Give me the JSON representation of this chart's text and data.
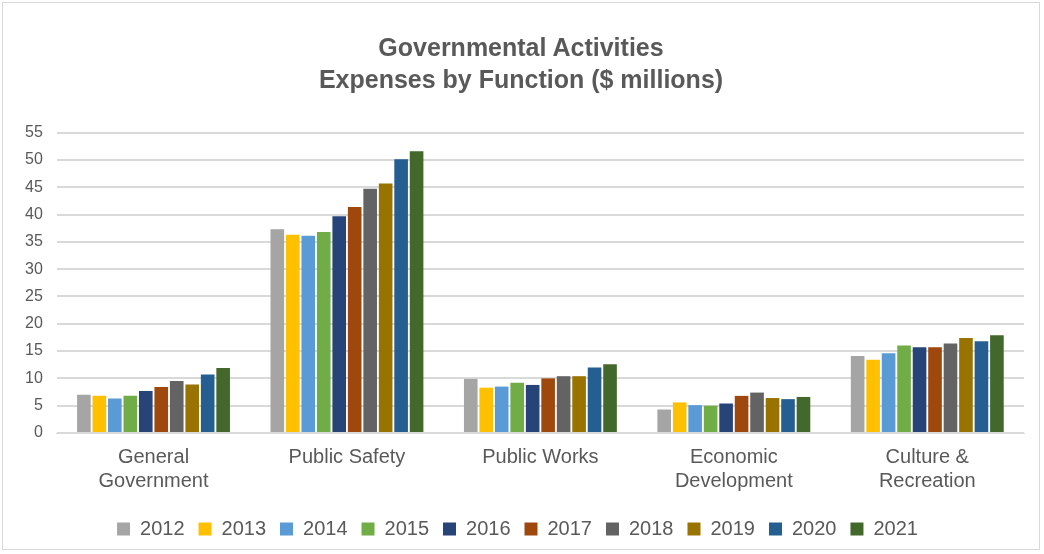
{
  "chart_data": {
    "type": "bar",
    "title": "Governmental Activities",
    "subtitle": "Expenses by Function ($ millions)",
    "categories": [
      "General Government",
      "Public Safety",
      "Public Works",
      "Economic Development",
      "Culture & Recreation"
    ],
    "series": [
      {
        "name": "2012",
        "color": "#a5a5a5",
        "values": [
          7.0,
          37.3,
          9.9,
          4.3,
          14.1
        ]
      },
      {
        "name": "2013",
        "color": "#ffc000",
        "values": [
          6.8,
          36.3,
          8.3,
          5.6,
          13.4
        ]
      },
      {
        "name": "2014",
        "color": "#5b9bd5",
        "values": [
          6.3,
          36.1,
          8.5,
          5.1,
          14.6
        ]
      },
      {
        "name": "2015",
        "color": "#70ad47",
        "values": [
          6.8,
          36.8,
          9.2,
          5.0,
          16.0
        ]
      },
      {
        "name": "2016",
        "color": "#264478",
        "values": [
          7.7,
          39.7,
          8.8,
          5.4,
          15.7
        ]
      },
      {
        "name": "2017",
        "color": "#9e480e",
        "values": [
          8.4,
          41.4,
          10.0,
          6.8,
          15.7
        ]
      },
      {
        "name": "2018",
        "color": "#636363",
        "values": [
          9.5,
          44.7,
          10.4,
          7.4,
          16.4
        ]
      },
      {
        "name": "2019",
        "color": "#997300",
        "values": [
          8.9,
          45.7,
          10.4,
          6.4,
          17.4
        ]
      },
      {
        "name": "2020",
        "color": "#255e91",
        "values": [
          10.7,
          50.1,
          12.0,
          6.2,
          16.8
        ]
      },
      {
        "name": "2021",
        "color": "#43682b",
        "values": [
          11.9,
          51.6,
          12.6,
          6.6,
          17.9
        ]
      }
    ],
    "ylim": [
      0,
      55
    ],
    "yticks": [
      0,
      5,
      10,
      15,
      20,
      25,
      30,
      35,
      40,
      45,
      50,
      55
    ],
    "grid": "y",
    "legend": "bottom"
  }
}
